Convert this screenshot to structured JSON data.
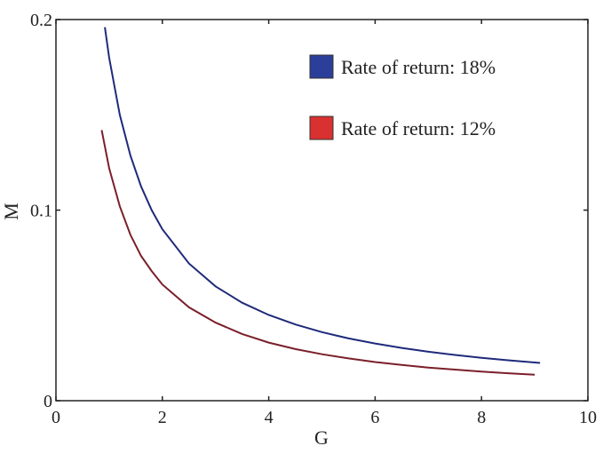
{
  "chart_data": {
    "type": "line",
    "title": "",
    "xlabel": "G",
    "ylabel": "M",
    "xlim": [
      0,
      10
    ],
    "ylim": [
      0,
      0.2
    ],
    "xticks": [
      "0",
      "2",
      "4",
      "6",
      "8",
      "10"
    ],
    "xtick_values": [
      0,
      2,
      4,
      6,
      8,
      10
    ],
    "yticks": [
      "0",
      "0.1",
      "0.2"
    ],
    "ytick_values": [
      0,
      0.1,
      0.2
    ],
    "grid": false,
    "legend_placement": "top-right",
    "series": [
      {
        "name": "Rate of return: 18%",
        "color": "#1f2a7a",
        "legend_color": "#2b3f9a",
        "x": [
          0.92,
          1.0,
          1.2,
          1.4,
          1.6,
          1.8,
          2.0,
          2.5,
          3.0,
          3.5,
          4.0,
          4.5,
          5.0,
          5.5,
          6.0,
          6.5,
          7.0,
          7.5,
          8.0,
          8.5,
          9.1
        ],
        "y": [
          0.196,
          0.18,
          0.15,
          0.1286,
          0.1125,
          0.1,
          0.09,
          0.072,
          0.06,
          0.0514,
          0.045,
          0.04,
          0.036,
          0.0327,
          0.03,
          0.0277,
          0.0257,
          0.024,
          0.0225,
          0.0212,
          0.0198
        ]
      },
      {
        "name": "Rate of return: 12%",
        "color": "#7a1f2a",
        "legend_color": "#d9312f",
        "x": [
          0.86,
          1.0,
          1.2,
          1.4,
          1.6,
          1.8,
          2.0,
          2.5,
          3.0,
          3.5,
          4.0,
          4.5,
          5.0,
          5.5,
          6.0,
          6.5,
          7.0,
          7.5,
          8.0,
          8.5,
          9.0
        ],
        "y": [
          0.142,
          0.122,
          0.102,
          0.087,
          0.076,
          0.068,
          0.061,
          0.049,
          0.041,
          0.035,
          0.0305,
          0.0271,
          0.0244,
          0.0222,
          0.0203,
          0.0188,
          0.0174,
          0.0163,
          0.0153,
          0.0144,
          0.0136
        ]
      }
    ]
  }
}
